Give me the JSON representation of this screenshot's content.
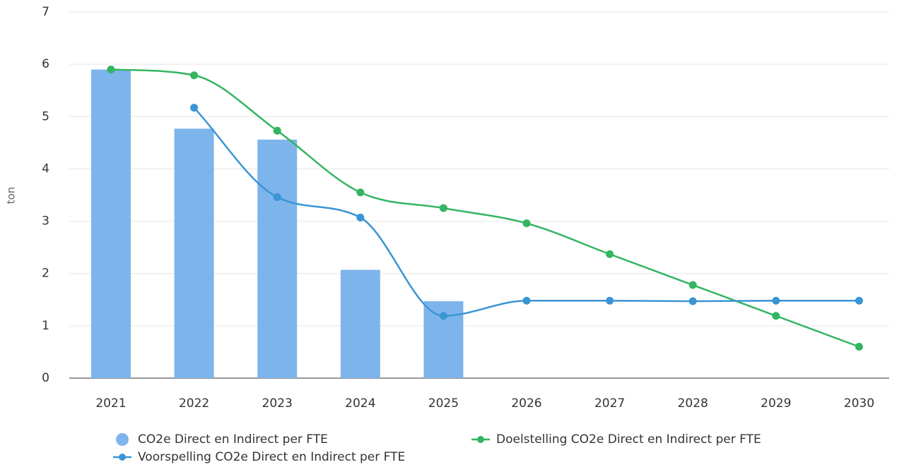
{
  "chart_data": {
    "type": "combo",
    "y_label": "ton",
    "categories": [
      "2021",
      "2022",
      "2023",
      "2024",
      "2025",
      "2026",
      "2027",
      "2028",
      "2029",
      "2030"
    ],
    "series": [
      {
        "name": "CO2e Direct en Indirect per FTE",
        "type": "bar",
        "color": "#7eb4ec",
        "values": [
          5.9,
          4.77,
          4.56,
          2.07,
          1.47,
          null,
          null,
          null,
          null,
          null
        ]
      },
      {
        "name": "Doelstelling CO2e Direct en Indirect per FTE",
        "type": "line",
        "color": "#33b561",
        "values": [
          5.9,
          5.79,
          4.73,
          3.55,
          3.25,
          2.96,
          2.37,
          1.78,
          1.19,
          0.6
        ]
      },
      {
        "name": "Voorspelling CO2e Direct en Indirect per FTE",
        "type": "line",
        "color": "#3a95d4",
        "values": [
          null,
          5.17,
          3.46,
          3.07,
          1.19,
          1.48,
          1.48,
          1.47,
          1.48,
          1.48
        ]
      }
    ],
    "ylim": [
      0,
      7
    ],
    "yticks": [
      0,
      1,
      2,
      3,
      4,
      5,
      6,
      7
    ],
    "grid": true
  }
}
